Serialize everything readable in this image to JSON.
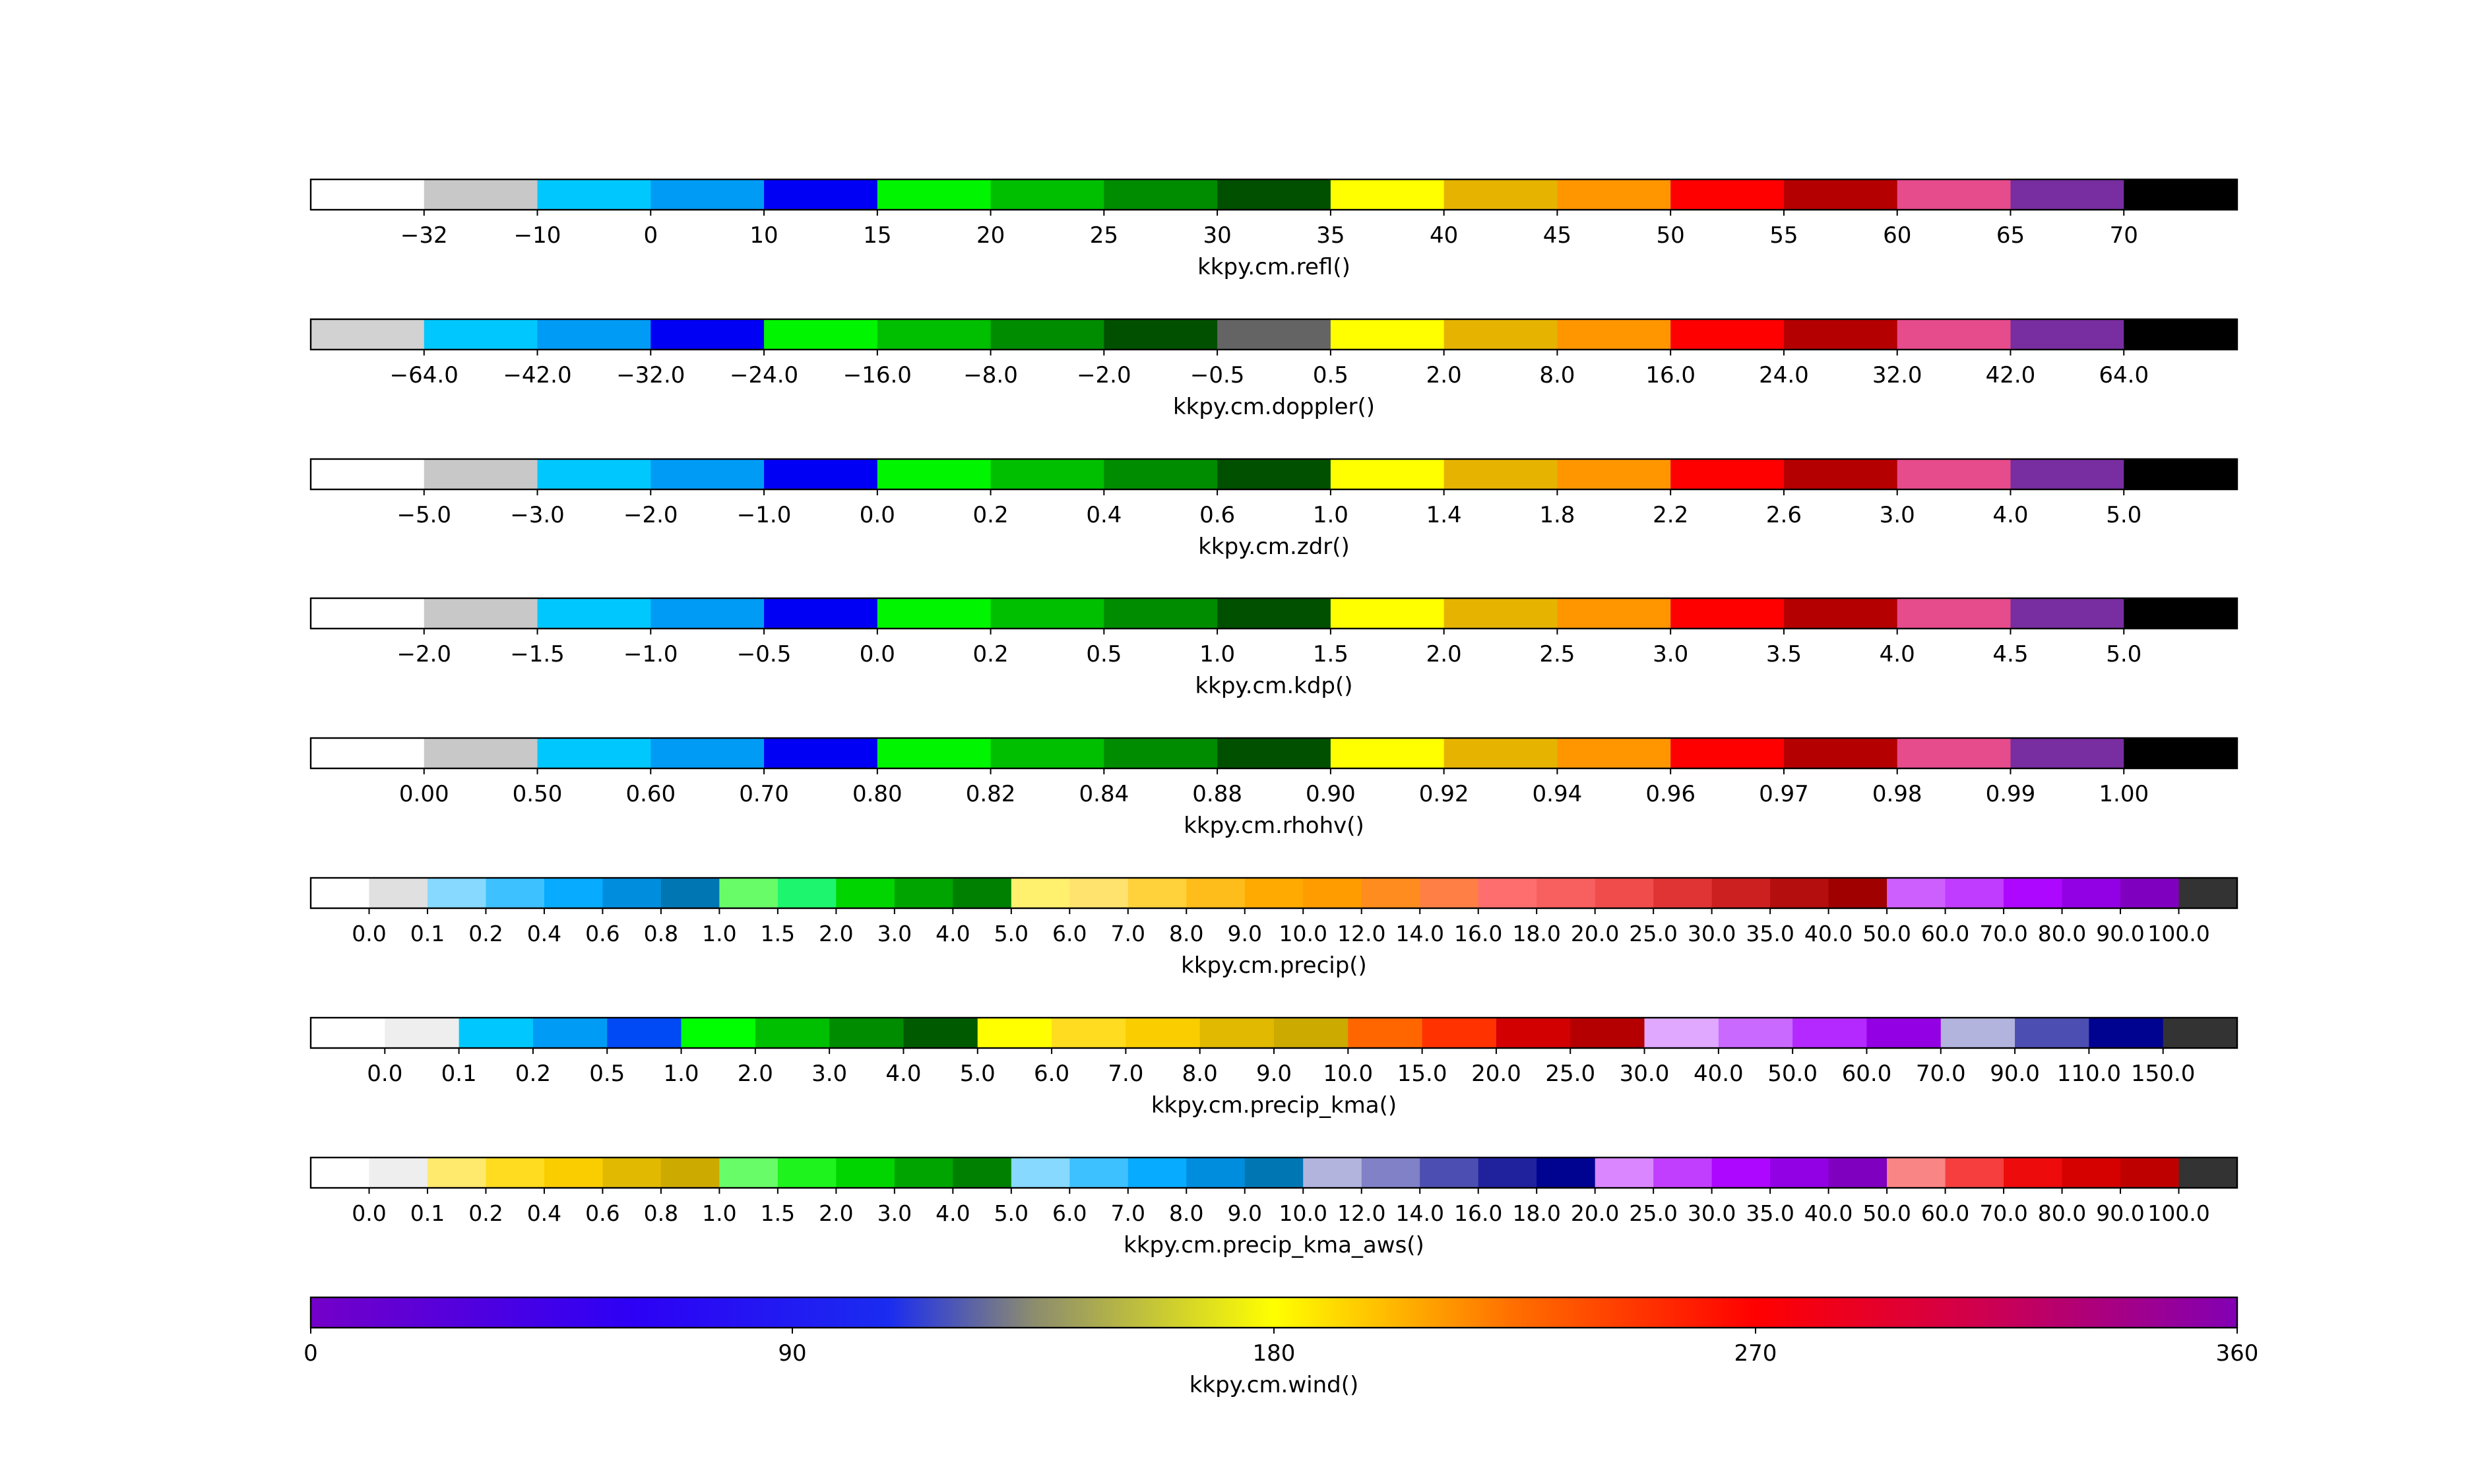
{
  "chart_data": [
    {
      "type": "colorbar",
      "title": "kkpy.cm.refl()",
      "colors": [
        "#ffffff",
        "#c8c8c8",
        "#00c8ff",
        "#009bf5",
        "#0000f5",
        "#00f500",
        "#00be00",
        "#008c00",
        "#005000",
        "#ffff00",
        "#e6b400",
        "#ff9600",
        "#ff0000",
        "#b40000",
        "#e64b8c",
        "#782da0",
        "#000000"
      ],
      "ticks": [
        "−32",
        "−10",
        "0",
        "10",
        "15",
        "20",
        "25",
        "30",
        "35",
        "40",
        "45",
        "50",
        "55",
        "60",
        "65",
        "70"
      ]
    },
    {
      "type": "colorbar",
      "title": "kkpy.cm.doppler()",
      "colors": [
        "#d2d2d2",
        "#00c8ff",
        "#009bf5",
        "#0000f5",
        "#00f500",
        "#00be00",
        "#008c00",
        "#005000",
        "#646464",
        "#ffff00",
        "#e6b400",
        "#ff9600",
        "#ff0000",
        "#b40000",
        "#e64b8c",
        "#782da0",
        "#000000"
      ],
      "ticks": [
        "−64.0",
        "−42.0",
        "−32.0",
        "−24.0",
        "−16.0",
        "−8.0",
        "−2.0",
        "−0.5",
        "0.5",
        "2.0",
        "8.0",
        "16.0",
        "24.0",
        "32.0",
        "42.0",
        "64.0"
      ]
    },
    {
      "type": "colorbar",
      "title": "kkpy.cm.zdr()",
      "colors": [
        "#ffffff",
        "#c8c8c8",
        "#00c8ff",
        "#009bf5",
        "#0000f5",
        "#00f500",
        "#00be00",
        "#008c00",
        "#005000",
        "#ffff00",
        "#e6b400",
        "#ff9600",
        "#ff0000",
        "#b40000",
        "#e64b8c",
        "#782da0",
        "#000000"
      ],
      "ticks": [
        "−5.0",
        "−3.0",
        "−2.0",
        "−1.0",
        "0.0",
        "0.2",
        "0.4",
        "0.6",
        "1.0",
        "1.4",
        "1.8",
        "2.2",
        "2.6",
        "3.0",
        "4.0",
        "5.0"
      ]
    },
    {
      "type": "colorbar",
      "title": "kkpy.cm.kdp()",
      "colors": [
        "#ffffff",
        "#c8c8c8",
        "#00c8ff",
        "#009bf5",
        "#0000f5",
        "#00f500",
        "#00be00",
        "#008c00",
        "#005000",
        "#ffff00",
        "#e6b400",
        "#ff9600",
        "#ff0000",
        "#b40000",
        "#e64b8c",
        "#782da0",
        "#000000"
      ],
      "ticks": [
        "−2.0",
        "−1.5",
        "−1.0",
        "−0.5",
        "0.0",
        "0.2",
        "0.5",
        "1.0",
        "1.5",
        "2.0",
        "2.5",
        "3.0",
        "3.5",
        "4.0",
        "4.5",
        "5.0"
      ]
    },
    {
      "type": "colorbar",
      "title": "kkpy.cm.rhohv()",
      "colors": [
        "#ffffff",
        "#c8c8c8",
        "#00c8ff",
        "#009bf5",
        "#0000f5",
        "#00f500",
        "#00be00",
        "#008c00",
        "#005000",
        "#ffff00",
        "#e6b400",
        "#ff9600",
        "#ff0000",
        "#b40000",
        "#e64b8c",
        "#782da0",
        "#000000"
      ],
      "ticks": [
        "0.00",
        "0.50",
        "0.60",
        "0.70",
        "0.80",
        "0.82",
        "0.84",
        "0.88",
        "0.90",
        "0.92",
        "0.94",
        "0.96",
        "0.97",
        "0.98",
        "0.99",
        "1.00"
      ]
    },
    {
      "type": "colorbar",
      "title": "kkpy.cm.precip()",
      "colors": [
        "#ffffff",
        "#e0e0e0",
        "#87d9ff",
        "#3ec1ff",
        "#07abff",
        "#008dde",
        "#0077b3",
        "#69fc69",
        "#1ef56e",
        "#00d500",
        "#00a400",
        "#008000",
        "#fff06e",
        "#ffe36e",
        "#ffd23c",
        "#ffbd1b",
        "#ffaa00",
        "#ff9c00",
        "#ff8c1e",
        "#ff7f45",
        "#ff6e6e",
        "#f86060",
        "#f04c4c",
        "#e03434",
        "#cc2020",
        "#b40e0e",
        "#a00000",
        "#ce5fff",
        "#c03cff",
        "#ad07ff",
        "#9200e4",
        "#7f00bf",
        "#333333"
      ],
      "ticks": [
        "0.0",
        "0.1",
        "0.2",
        "0.4",
        "0.6",
        "0.8",
        "1.0",
        "1.5",
        "2.0",
        "3.0",
        "4.0",
        "5.0",
        "6.0",
        "7.0",
        "8.0",
        "9.0",
        "10.0",
        "12.0",
        "14.0",
        "16.0",
        "18.0",
        "20.0",
        "25.0",
        "30.0",
        "35.0",
        "40.0",
        "50.0",
        "60.0",
        "70.0",
        "80.0",
        "90.0",
        "100.0"
      ]
    },
    {
      "type": "colorbar",
      "title": "kkpy.cm.precip_kma()",
      "colors": [
        "#ffffff",
        "#eeeeee",
        "#00c8ff",
        "#009bf5",
        "#004af5",
        "#00ff00",
        "#00be00",
        "#008c00",
        "#005a00",
        "#ffff00",
        "#ffdc1f",
        "#f9cd00",
        "#e0b900",
        "#ccaa00",
        "#ff6600",
        "#ff3200",
        "#d20000",
        "#b40000",
        "#e0a9ff",
        "#c969ff",
        "#b329ff",
        "#9300e4",
        "#b3b4de",
        "#4c4eb1",
        "#000390",
        "#333333"
      ],
      "ticks": [
        "0.0",
        "0.1",
        "0.2",
        "0.5",
        "1.0",
        "2.0",
        "3.0",
        "4.0",
        "5.0",
        "6.0",
        "7.0",
        "8.0",
        "9.0",
        "10.0",
        "15.0",
        "20.0",
        "25.0",
        "30.0",
        "40.0",
        "50.0",
        "60.0",
        "70.0",
        "90.0",
        "110.0",
        "150.0"
      ]
    },
    {
      "type": "colorbar",
      "title": "kkpy.cm.precip_kma_aws()",
      "colors": [
        "#ffffff",
        "#eeeeee",
        "#ffea6e",
        "#ffdc1f",
        "#f9cd00",
        "#e0b900",
        "#ccaa00",
        "#69fc69",
        "#1ef31e",
        "#00d500",
        "#00a400",
        "#008000",
        "#87d9ff",
        "#3ec1ff",
        "#07abff",
        "#008dde",
        "#0077b3",
        "#b3b4de",
        "#8081c7",
        "#4c4eb1",
        "#1f219d",
        "#000390",
        "#da87ff",
        "#c23eff",
        "#ad07ff",
        "#9200e4",
        "#7f00bf",
        "#fa8585",
        "#f63e3e",
        "#ee0b0b",
        "#d50000",
        "#bf0000",
        "#333333"
      ],
      "ticks": [
        "0.0",
        "0.1",
        "0.2",
        "0.4",
        "0.6",
        "0.8",
        "1.0",
        "1.5",
        "2.0",
        "3.0",
        "4.0",
        "5.0",
        "6.0",
        "7.0",
        "8.0",
        "9.0",
        "10.0",
        "12.0",
        "14.0",
        "16.0",
        "18.0",
        "20.0",
        "25.0",
        "30.0",
        "35.0",
        "40.0",
        "50.0",
        "60.0",
        "70.0",
        "80.0",
        "90.0",
        "100.0"
      ]
    },
    {
      "type": "colorbar_continuous",
      "title": "kkpy.cm.wind()",
      "range": [
        0,
        360
      ],
      "gradient_stops": [
        {
          "value": 0,
          "color": "#7400c8"
        },
        {
          "value": 60,
          "color": "#2d00f5"
        },
        {
          "value": 108,
          "color": "#1a2cf0"
        },
        {
          "value": 135,
          "color": "#8c8c6e"
        },
        {
          "value": 180,
          "color": "#ffff00"
        },
        {
          "value": 225,
          "color": "#ff6e00"
        },
        {
          "value": 270,
          "color": "#ff0000"
        },
        {
          "value": 310,
          "color": "#d2004a"
        },
        {
          "value": 360,
          "color": "#8200b4"
        }
      ],
      "ticks": [
        "0",
        "90",
        "180",
        "270",
        "360"
      ],
      "tick_values": [
        0,
        90,
        180,
        270,
        360
      ]
    }
  ]
}
